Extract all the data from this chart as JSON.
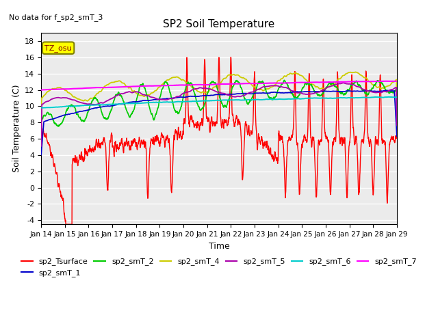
{
  "title": "SP2 Soil Temperature",
  "subtitle": "No data for f_sp2_smT_3",
  "ylabel": "Soil Temperature (C)",
  "xlabel": "Time",
  "ylim": [
    -4.5,
    19
  ],
  "yticks": [
    -4,
    -2,
    0,
    2,
    4,
    6,
    8,
    10,
    12,
    14,
    16,
    18
  ],
  "xtick_labels": [
    "Jan 14",
    "Jan 15",
    "Jan 16",
    "Jan 17",
    "Jan 18",
    "Jan 19",
    "Jan 20",
    "Jan 21",
    "Jan 22",
    "Jan 23",
    "Jan 24",
    "Jan 25",
    "Jan 26",
    "Jan 27",
    "Jan 28",
    "Jan 29"
  ],
  "legend_entries": [
    {
      "label": "sp2_Tsurface",
      "color": "#ff0000"
    },
    {
      "label": "sp2_smT_1",
      "color": "#0000cc"
    },
    {
      "label": "sp2_smT_2",
      "color": "#00cc00"
    },
    {
      "label": "sp2_smT_4",
      "color": "#cccc00"
    },
    {
      "label": "sp2_smT_5",
      "color": "#aa00aa"
    },
    {
      "label": "sp2_smT_6",
      "color": "#00cccc"
    },
    {
      "label": "sp2_smT_7",
      "color": "#ff00ff"
    }
  ],
  "timezone_label": "TZ_osu",
  "plot_bg_color": "#ebebeb"
}
